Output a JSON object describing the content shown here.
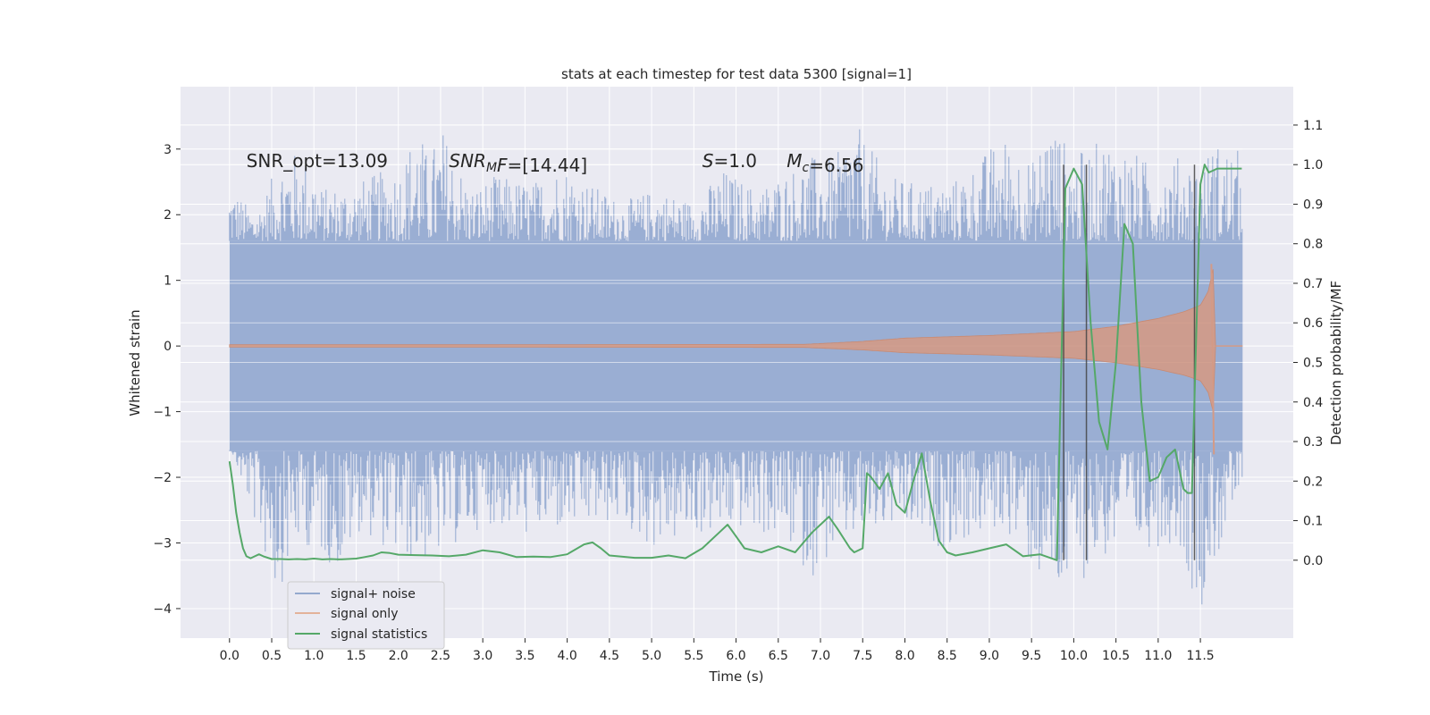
{
  "chart_data": {
    "type": "line",
    "title": "stats at each timestep for test data 5300 [signal=1]",
    "xlabel": "Time (s)",
    "ylabel": "Whitened strain",
    "y2label": "Detection probability/MF",
    "xlim": [
      -0.58,
      12.6
    ],
    "ylim": [
      -4.45,
      3.95
    ],
    "y2lim": [
      -0.197,
      1.197
    ],
    "xticks": [
      "0.0",
      "0.5",
      "1.0",
      "1.5",
      "2.0",
      "2.5",
      "3.0",
      "3.5",
      "4.0",
      "4.5",
      "5.0",
      "5.5",
      "6.0",
      "6.5",
      "7.0",
      "7.5",
      "8.0",
      "8.5",
      "9.0",
      "9.5",
      "10.0",
      "10.5",
      "11.0",
      "11.5"
    ],
    "yticks": [
      -4,
      -3,
      -2,
      -1,
      0,
      1,
      2,
      3
    ],
    "y2ticks": [
      0.0,
      0.1,
      0.2,
      0.3,
      0.4,
      0.5,
      0.6,
      0.7,
      0.8,
      0.9,
      1.0,
      1.1
    ],
    "grid": true,
    "legend_position": "lower-left",
    "annotations": [
      {
        "parts": [
          {
            "t": "SNR_opt=13.09"
          }
        ],
        "x": 0.2,
        "y": 2.82
      },
      {
        "parts": [
          {
            "t": "SNR",
            "i": true
          },
          {
            "t": "M",
            "i": true,
            "sub": true
          },
          {
            "t": "F",
            "i": true
          },
          {
            "t": "=[14.44]"
          }
        ],
        "x": 2.6,
        "y": 2.82
      },
      {
        "parts": [
          {
            "t": "S",
            "i": true
          },
          {
            "t": "=1.0"
          }
        ],
        "x": 5.6,
        "y": 2.82
      },
      {
        "parts": [
          {
            "t": "M",
            "i": true
          },
          {
            "t": "c",
            "i": true,
            "sub": true
          },
          {
            "t": "=6.56"
          }
        ],
        "x": 6.6,
        "y": 2.82
      }
    ],
    "series": [
      {
        "name": "signal+ noise",
        "color": "#4c72b0",
        "kind": "noise",
        "x_range": [
          0.0,
          12.0
        ],
        "band": [
          -1.6,
          1.6
        ],
        "peaks_high": [
          [
            0.03,
            2.45
          ],
          [
            0.3,
            2.0
          ],
          [
            0.62,
            2.9
          ],
          [
            0.72,
            3.0
          ],
          [
            0.98,
            2.8
          ],
          [
            1.1,
            2.4
          ],
          [
            1.5,
            2.5
          ],
          [
            2.05,
            2.8
          ],
          [
            2.22,
            3.45
          ],
          [
            2.35,
            2.9
          ],
          [
            2.52,
            3.35
          ],
          [
            2.85,
            2.4
          ],
          [
            3.15,
            2.6
          ],
          [
            3.6,
            2.5
          ],
          [
            3.95,
            2.8
          ],
          [
            4.25,
            2.5
          ],
          [
            4.65,
            2.2
          ],
          [
            5.05,
            2.4
          ],
          [
            5.5,
            2.2
          ],
          [
            5.85,
            2.7
          ],
          [
            6.25,
            2.4
          ],
          [
            6.5,
            2.6
          ],
          [
            6.9,
            2.9
          ],
          [
            7.18,
            2.85
          ],
          [
            7.38,
            3.5
          ],
          [
            7.8,
            2.6
          ],
          [
            8.1,
            2.5
          ],
          [
            8.55,
            2.5
          ],
          [
            8.85,
            2.8
          ],
          [
            9.05,
            3.1
          ],
          [
            9.2,
            3.2
          ],
          [
            9.55,
            2.8
          ],
          [
            9.7,
            3.6
          ],
          [
            10.0,
            2.9
          ],
          [
            10.4,
            3.2
          ],
          [
            10.8,
            2.9
          ],
          [
            11.0,
            2.7
          ],
          [
            11.25,
            2.9
          ],
          [
            11.55,
            2.8
          ],
          [
            11.65,
            3.15
          ],
          [
            11.9,
            3.0
          ]
        ],
        "peaks_low": [
          [
            0.0,
            -1.5
          ],
          [
            0.32,
            -2.8
          ],
          [
            0.55,
            -3.8
          ],
          [
            0.85,
            -3.0
          ],
          [
            1.32,
            -3.45
          ],
          [
            1.55,
            -2.8
          ],
          [
            2.05,
            -3.3
          ],
          [
            2.4,
            -3.3
          ],
          [
            3.05,
            -2.7
          ],
          [
            3.5,
            -2.9
          ],
          [
            4.15,
            -2.8
          ],
          [
            4.6,
            -2.7
          ],
          [
            5.0,
            -3.1
          ],
          [
            5.6,
            -2.9
          ],
          [
            6.1,
            -2.8
          ],
          [
            6.6,
            -3.0
          ],
          [
            6.88,
            -3.55
          ],
          [
            7.35,
            -3.0
          ],
          [
            7.9,
            -2.8
          ],
          [
            8.45,
            -3.1
          ],
          [
            9.2,
            -2.8
          ],
          [
            9.8,
            -4.0
          ],
          [
            10.3,
            -3.3
          ],
          [
            10.8,
            -3.1
          ],
          [
            11.25,
            -3.0
          ],
          [
            11.48,
            -4.1
          ],
          [
            11.95,
            -2.35
          ]
        ]
      },
      {
        "name": "signal only",
        "color": "#dd8452",
        "kind": "chirp",
        "x_range": [
          0.0,
          11.68
        ],
        "envelope": [
          [
            0.0,
            0.02
          ],
          [
            3.0,
            0.02
          ],
          [
            6.8,
            0.025
          ],
          [
            7.5,
            0.07
          ],
          [
            8.0,
            0.12
          ],
          [
            9.0,
            0.16
          ],
          [
            10.0,
            0.22
          ],
          [
            10.5,
            0.3
          ],
          [
            11.0,
            0.42
          ],
          [
            11.3,
            0.52
          ],
          [
            11.5,
            0.62
          ],
          [
            11.6,
            0.85
          ],
          [
            11.65,
            1.2
          ],
          [
            11.68,
            0.0
          ]
        ],
        "tail": [
          [
            11.68,
            0.0
          ],
          [
            12.0,
            0.0
          ]
        ]
      },
      {
        "name": "signal statistics",
        "color": "#55a868",
        "axis": "y2",
        "x": [
          0.0,
          0.04,
          0.08,
          0.12,
          0.16,
          0.2,
          0.25,
          0.3,
          0.35,
          0.4,
          0.5,
          0.6,
          0.7,
          0.8,
          0.9,
          1.0,
          1.1,
          1.2,
          1.3,
          1.4,
          1.5,
          1.6,
          1.7,
          1.8,
          1.9,
          2.0,
          2.2,
          2.4,
          2.6,
          2.8,
          3.0,
          3.2,
          3.4,
          3.6,
          3.8,
          4.0,
          4.2,
          4.3,
          4.4,
          4.5,
          4.6,
          4.8,
          5.0,
          5.2,
          5.4,
          5.6,
          5.8,
          5.9,
          6.0,
          6.1,
          6.3,
          6.5,
          6.7,
          6.9,
          7.0,
          7.1,
          7.2,
          7.35,
          7.4,
          7.5,
          7.55,
          7.6,
          7.7,
          7.8,
          7.9,
          8.0,
          8.1,
          8.2,
          8.3,
          8.4,
          8.5,
          8.6,
          8.8,
          9.0,
          9.2,
          9.4,
          9.6,
          9.8,
          9.9,
          10.0,
          10.1,
          10.2,
          10.3,
          10.4,
          10.5,
          10.6,
          10.7,
          10.8,
          10.9,
          11.0,
          11.1,
          11.2,
          11.3,
          11.35,
          11.4,
          11.5,
          11.55,
          11.6,
          11.7,
          11.8,
          11.9,
          11.99
        ],
        "values": [
          0.25,
          0.19,
          0.12,
          0.07,
          0.03,
          0.01,
          0.005,
          0.01,
          0.015,
          0.01,
          0.003,
          0.003,
          0.002,
          0.003,
          0.002,
          0.004,
          0.002,
          0.003,
          0.002,
          0.003,
          0.004,
          0.008,
          0.012,
          0.02,
          0.018,
          0.014,
          0.013,
          0.012,
          0.01,
          0.014,
          0.025,
          0.02,
          0.008,
          0.009,
          0.008,
          0.015,
          0.04,
          0.045,
          0.03,
          0.012,
          0.01,
          0.006,
          0.006,
          0.012,
          0.005,
          0.03,
          0.07,
          0.09,
          0.06,
          0.03,
          0.02,
          0.035,
          0.02,
          0.07,
          0.09,
          0.11,
          0.08,
          0.03,
          0.02,
          0.03,
          0.22,
          0.21,
          0.18,
          0.22,
          0.14,
          0.12,
          0.2,
          0.27,
          0.15,
          0.05,
          0.02,
          0.012,
          0.02,
          0.03,
          0.04,
          0.01,
          0.015,
          0.0,
          0.94,
          0.99,
          0.95,
          0.6,
          0.35,
          0.28,
          0.5,
          0.85,
          0.8,
          0.4,
          0.2,
          0.21,
          0.26,
          0.28,
          0.18,
          0.17,
          0.17,
          0.95,
          1.0,
          0.98,
          0.99,
          0.99,
          0.99,
          0.99
        ]
      }
    ],
    "vlines": [
      {
        "x": 9.88,
        "y2": [
          0.0,
          1.0
        ]
      },
      {
        "x": 10.15,
        "y2": [
          0.0,
          1.0
        ]
      },
      {
        "x": 11.43,
        "y2": [
          0.0,
          1.0
        ]
      }
    ]
  }
}
